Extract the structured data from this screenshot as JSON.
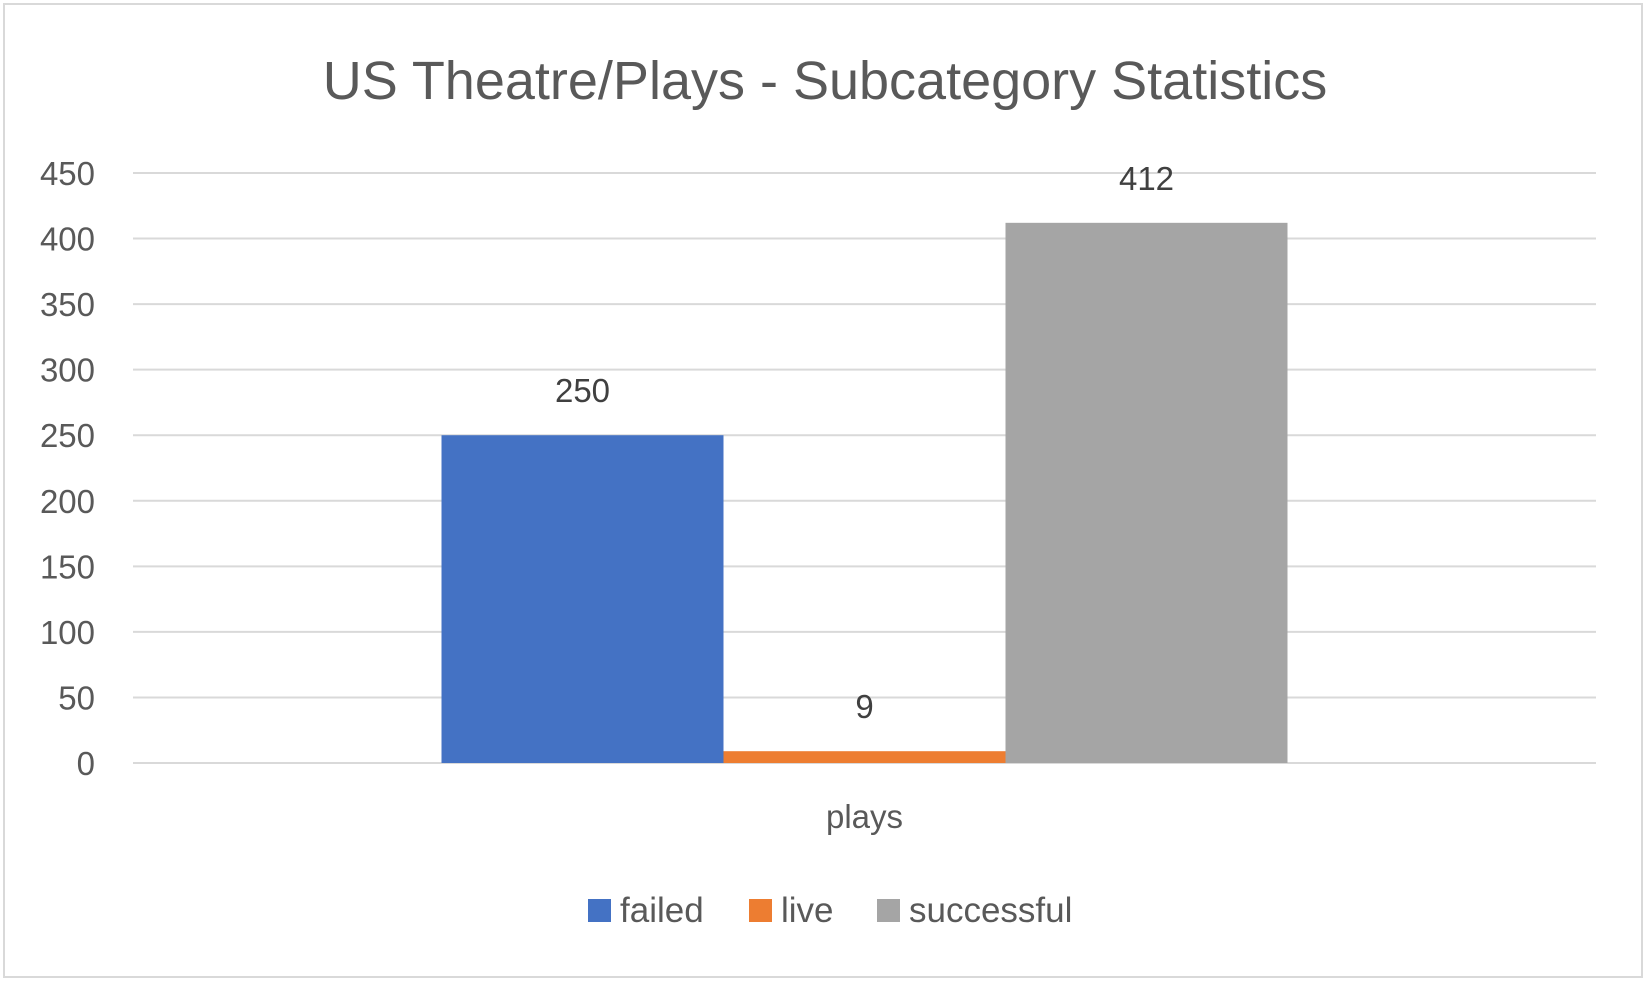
{
  "chart_data": {
    "type": "bar",
    "title": "US Theatre/Plays - Subcategory Statistics",
    "categories": [
      "plays"
    ],
    "series": [
      {
        "name": "failed",
        "values": [
          250
        ],
        "color": "#4472c4"
      },
      {
        "name": "live",
        "values": [
          9
        ],
        "color": "#ed7d31"
      },
      {
        "name": "successful",
        "values": [
          412
        ],
        "color": "#a5a5a5"
      }
    ],
    "xlabel": "",
    "ylabel": "",
    "ylim": [
      0,
      450
    ],
    "yticks": [
      "0",
      "50",
      "100",
      "150",
      "200",
      "250",
      "300",
      "350",
      "400",
      "450"
    ],
    "grid": true,
    "data_labels": true,
    "legend_position": "bottom"
  }
}
